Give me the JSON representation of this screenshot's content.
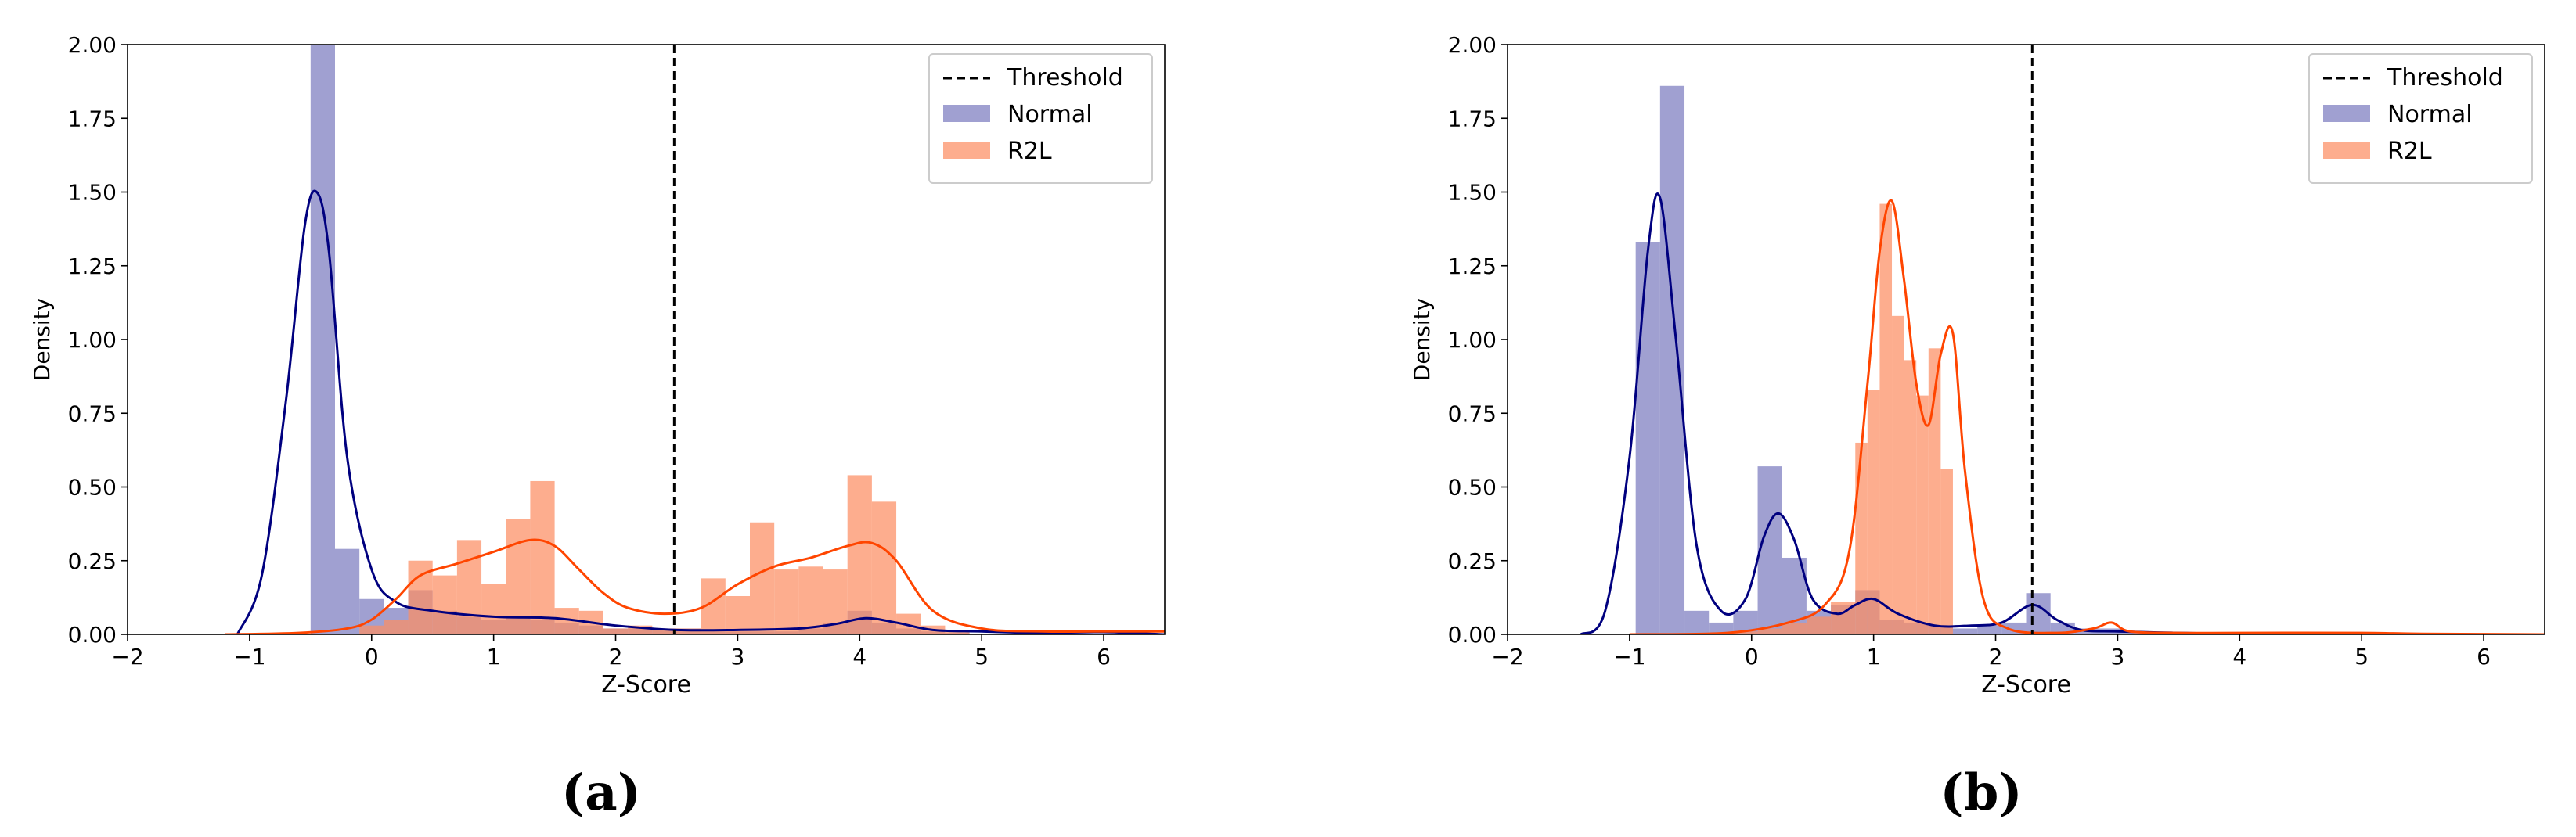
{
  "chart_data": [
    {
      "type": "histogram-kde",
      "panel_label": "(a)",
      "xlabel": "Z-Score",
      "ylabel": "Density",
      "xlim": [
        -2,
        6.5
      ],
      "ylim": [
        0,
        2.0
      ],
      "xticks": [
        -2,
        -1,
        0,
        1,
        2,
        3,
        4,
        5,
        6
      ],
      "xtick_labels": [
        "−2",
        "−1",
        "0",
        "1",
        "2",
        "3",
        "4",
        "5",
        "6"
      ],
      "yticks": [
        0,
        0.25,
        0.5,
        0.75,
        1.0,
        1.25,
        1.5,
        1.75,
        2.0
      ],
      "ytick_labels": [
        "0.00",
        "0.25",
        "0.50",
        "0.75",
        "1.00",
        "1.25",
        "1.50",
        "1.75",
        "2.00"
      ],
      "threshold": 2.48,
      "legend": {
        "position": "top-right",
        "entries": [
          "Threshold",
          "Normal",
          "R2L"
        ]
      },
      "series": [
        {
          "name": "Normal",
          "color": "#7b7bbf",
          "kde_color": "#00007f",
          "bin_edges": [
            -0.5,
            -0.3,
            -0.1,
            0.1,
            0.3,
            0.5,
            0.7,
            0.9,
            1.1,
            1.3,
            1.5,
            1.7,
            1.9,
            2.1,
            2.3,
            2.5,
            2.7,
            2.9,
            3.1,
            3.3,
            3.5,
            3.7,
            3.9,
            4.1,
            4.3,
            4.5,
            4.7,
            4.9
          ],
          "heights": [
            2.0,
            0.29,
            0.12,
            0.09,
            0.15,
            0.08,
            0.06,
            0.05,
            0.06,
            0.05,
            0.04,
            0.03,
            0.02,
            0.02,
            0.02,
            0.02,
            0.01,
            0.01,
            0.01,
            0.01,
            0.02,
            0.04,
            0.08,
            0.04,
            0.02,
            0.01,
            0.005
          ],
          "kde_x": [
            -1.1,
            -0.9,
            -0.7,
            -0.55,
            -0.45,
            -0.35,
            -0.2,
            0,
            0.2,
            0.5,
            1.0,
            1.5,
            2.0,
            2.5,
            3.0,
            3.5,
            3.8,
            4.05,
            4.3,
            4.6,
            5.0,
            5.5,
            6.0,
            6.5
          ],
          "kde_y": [
            0.0,
            0.2,
            0.8,
            1.38,
            1.5,
            1.3,
            0.6,
            0.22,
            0.11,
            0.08,
            0.06,
            0.055,
            0.03,
            0.015,
            0.015,
            0.02,
            0.035,
            0.055,
            0.04,
            0.015,
            0.01,
            0.005,
            0.008,
            0.0
          ]
        },
        {
          "name": "R2L",
          "color": "#fc8d62",
          "kde_color": "#ff4500",
          "bin_edges": [
            -0.5,
            -0.3,
            -0.1,
            0.1,
            0.3,
            0.5,
            0.7,
            0.9,
            1.1,
            1.3,
            1.5,
            1.7,
            1.9,
            2.1,
            2.3,
            2.5,
            2.7,
            2.9,
            3.1,
            3.3,
            3.5,
            3.7,
            3.9,
            4.1,
            4.3,
            4.5,
            4.7,
            4.9
          ],
          "heights": [
            0.0,
            0.0,
            0.03,
            0.05,
            0.25,
            0.2,
            0.32,
            0.17,
            0.39,
            0.52,
            0.09,
            0.08,
            0.02,
            0.03,
            0.02,
            0.02,
            0.19,
            0.13,
            0.38,
            0.22,
            0.23,
            0.22,
            0.54,
            0.45,
            0.07,
            0.03,
            0.01
          ],
          "kde_x": [
            -1.2,
            -0.6,
            -0.2,
            0.0,
            0.2,
            0.4,
            0.7,
            1.0,
            1.3,
            1.5,
            1.7,
            1.9,
            2.1,
            2.4,
            2.7,
            3.0,
            3.3,
            3.6,
            3.9,
            4.1,
            4.3,
            4.6,
            5.0,
            5.5,
            6.0,
            6.5
          ],
          "kde_y": [
            0.0,
            0.005,
            0.02,
            0.05,
            0.12,
            0.2,
            0.24,
            0.28,
            0.32,
            0.3,
            0.22,
            0.14,
            0.09,
            0.07,
            0.09,
            0.17,
            0.23,
            0.26,
            0.3,
            0.31,
            0.25,
            0.08,
            0.02,
            0.01,
            0.01,
            0.01
          ]
        }
      ]
    },
    {
      "type": "histogram-kde",
      "panel_label": "(b)",
      "xlabel": "Z-Score",
      "ylabel": "Density",
      "xlim": [
        -2,
        6.5
      ],
      "ylim": [
        0,
        2.0
      ],
      "xticks": [
        -2,
        -1,
        0,
        1,
        2,
        3,
        4,
        5,
        6
      ],
      "xtick_labels": [
        "−2",
        "−1",
        "0",
        "1",
        "2",
        "3",
        "4",
        "5",
        "6"
      ],
      "yticks": [
        0,
        0.25,
        0.5,
        0.75,
        1.0,
        1.25,
        1.5,
        1.75,
        2.0
      ],
      "ytick_labels": [
        "0.00",
        "0.25",
        "0.50",
        "0.75",
        "1.00",
        "1.25",
        "1.50",
        "1.75",
        "2.00"
      ],
      "threshold": 2.3,
      "legend": {
        "position": "top-right",
        "entries": [
          "Threshold",
          "Normal",
          "R2L"
        ]
      },
      "series": [
        {
          "name": "Normal",
          "color": "#7b7bbf",
          "kde_color": "#00007f",
          "bin_edges": [
            -0.95,
            -0.75,
            -0.55,
            -0.35,
            -0.15,
            0.05,
            0.25,
            0.45,
            0.65,
            0.85,
            1.05,
            1.25,
            1.45,
            1.65,
            1.85,
            2.05,
            2.25,
            2.45,
            2.65,
            2.85,
            3.05,
            3.25,
            3.45
          ],
          "heights": [
            1.33,
            1.86,
            0.08,
            0.04,
            0.08,
            0.57,
            0.26,
            0.08,
            0.1,
            0.15,
            0.05,
            0.04,
            0.03,
            0.02,
            0.03,
            0.04,
            0.14,
            0.04,
            0.02,
            0.02,
            0.01,
            0.01
          ],
          "kde_x": [
            -1.4,
            -1.2,
            -1.0,
            -0.85,
            -0.75,
            -0.62,
            -0.45,
            -0.25,
            -0.05,
            0.1,
            0.22,
            0.35,
            0.5,
            0.7,
            0.85,
            1.0,
            1.2,
            1.5,
            1.8,
            2.05,
            2.3,
            2.5,
            2.7,
            3.0,
            3.5,
            4.0,
            5.0,
            6.0,
            6.5
          ],
          "kde_y": [
            0.0,
            0.08,
            0.6,
            1.3,
            1.48,
            1.0,
            0.3,
            0.08,
            0.12,
            0.33,
            0.41,
            0.32,
            0.12,
            0.07,
            0.1,
            0.12,
            0.07,
            0.03,
            0.03,
            0.04,
            0.1,
            0.05,
            0.015,
            0.01,
            0.005,
            0.003,
            0.002,
            0.0,
            0.0
          ]
        },
        {
          "name": "R2L",
          "color": "#fc8d62",
          "kde_color": "#ff4500",
          "bin_edges": [
            -0.15,
            0.05,
            0.25,
            0.45,
            0.65,
            0.85,
            0.95,
            1.05,
            1.15,
            1.25,
            1.35,
            1.45,
            1.55,
            1.65,
            1.75,
            1.85
          ],
          "heights": [
            0.01,
            0.02,
            0.04,
            0.06,
            0.11,
            0.65,
            0.83,
            1.46,
            1.08,
            0.93,
            0.81,
            0.97,
            0.56,
            0.0,
            0.0
          ],
          "kde_x": [
            -1.0,
            -0.2,
            0.3,
            0.6,
            0.8,
            0.95,
            1.05,
            1.15,
            1.25,
            1.35,
            1.45,
            1.55,
            1.65,
            1.75,
            1.9,
            2.1,
            2.5,
            2.8,
            2.95,
            3.1,
            3.5,
            4.0,
            5.0,
            5.5,
            6.5
          ],
          "kde_y": [
            0.0,
            0.005,
            0.04,
            0.1,
            0.28,
            0.85,
            1.3,
            1.47,
            1.2,
            0.85,
            0.71,
            0.95,
            1.02,
            0.55,
            0.12,
            0.02,
            0.005,
            0.02,
            0.04,
            0.01,
            0.005,
            0.005,
            0.005,
            0.002,
            0.0
          ]
        }
      ]
    }
  ]
}
